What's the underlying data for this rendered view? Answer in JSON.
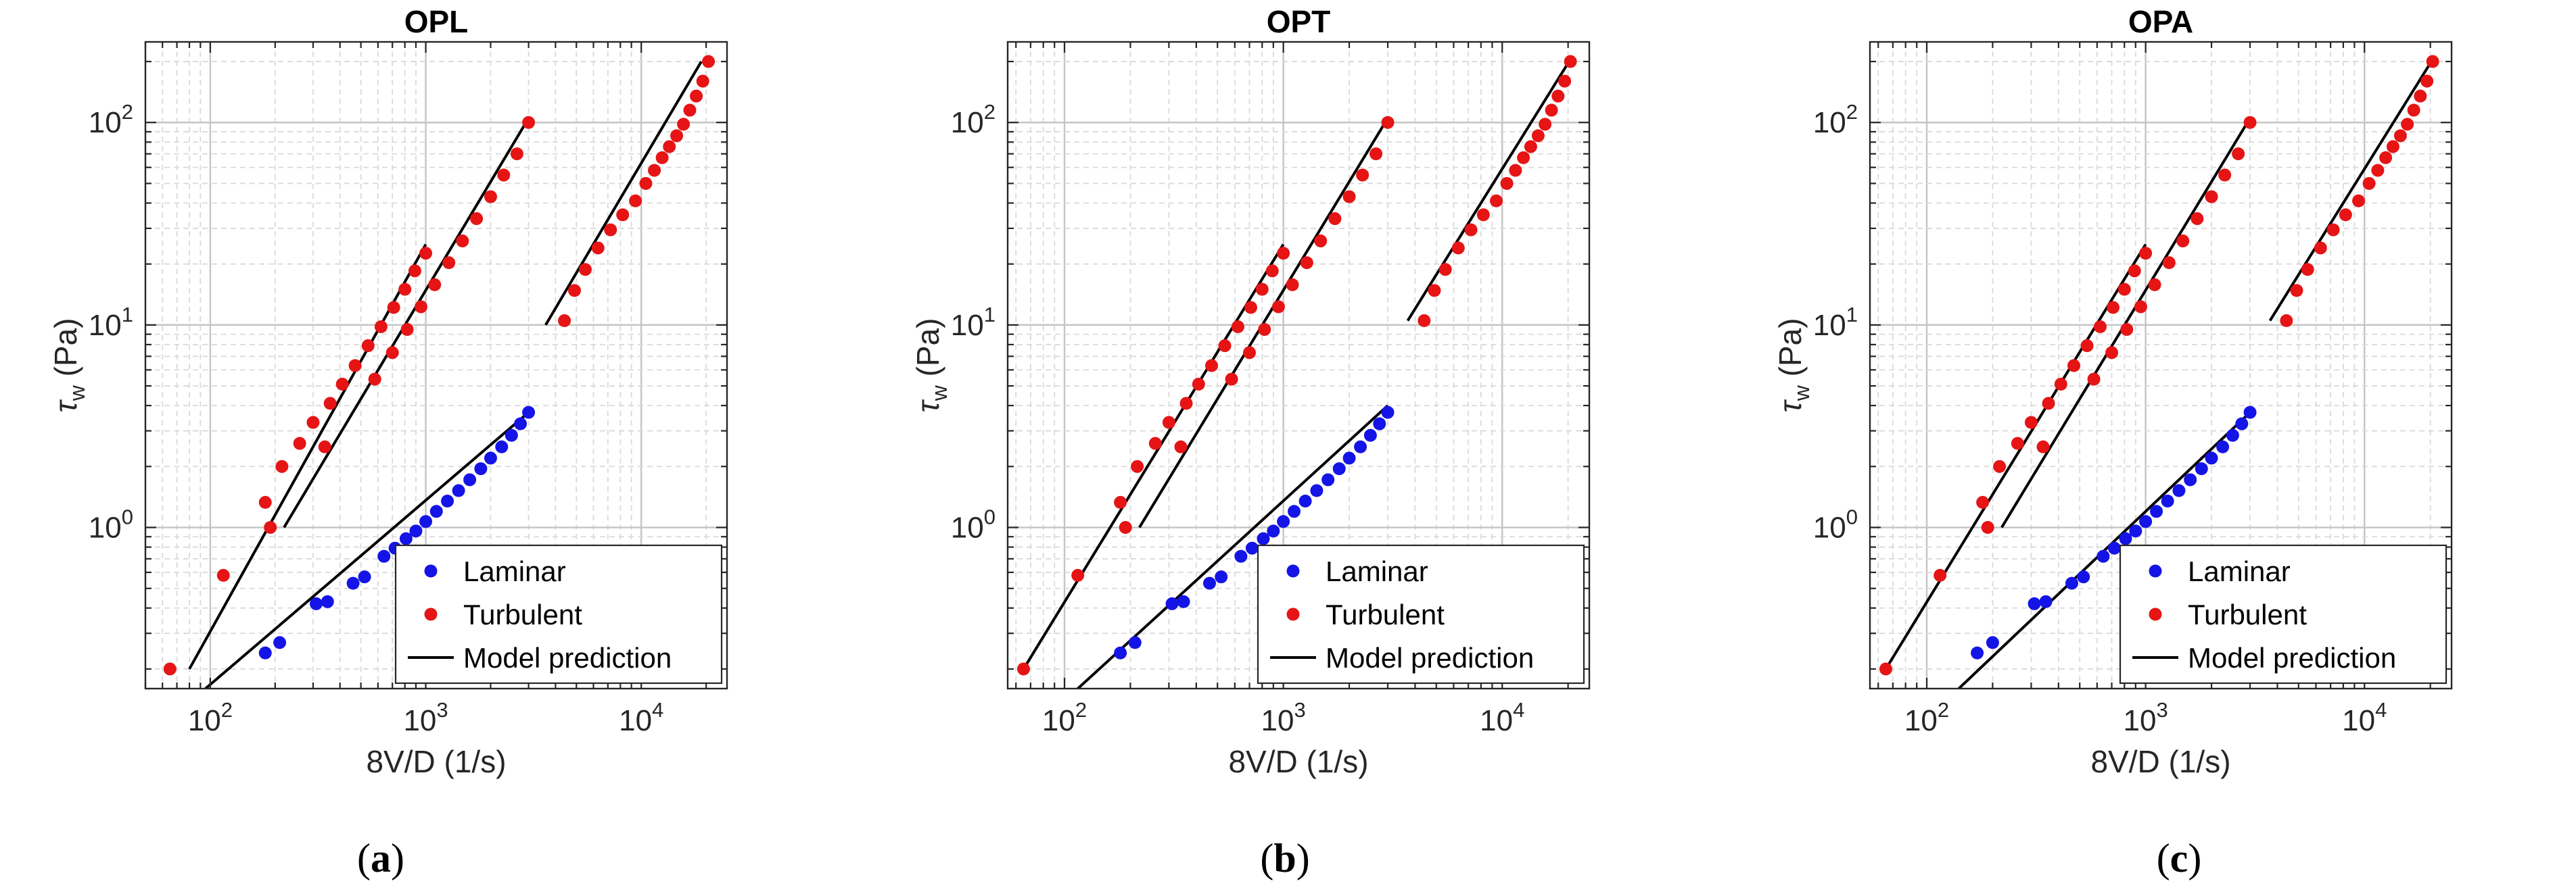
{
  "figure": {
    "panels": [
      {
        "caption_open": "(",
        "caption_letter": "a",
        "caption_close": ")"
      },
      {
        "caption_open": "(",
        "caption_letter": "b",
        "caption_close": ")"
      },
      {
        "caption_open": "(",
        "caption_letter": "c",
        "caption_close": ")"
      }
    ]
  },
  "chart_data": [
    {
      "type": "scatter",
      "title": "OPL",
      "xlabel": "8V/D (1/s)",
      "ylabel_symbol": "τ",
      "ylabel_sub": "w",
      "ylabel_unit": "(Pa)",
      "xscale": "log",
      "yscale": "log",
      "xlim": [
        50,
        25000
      ],
      "ylim": [
        0.16,
        250
      ],
      "xticks": [
        {
          "value": 100,
          "base": "10",
          "exp": "2"
        },
        {
          "value": 1000,
          "base": "10",
          "exp": "3"
        },
        {
          "value": 10000,
          "base": "10",
          "exp": "4"
        }
      ],
      "yticks": [
        {
          "value": 1,
          "base": "10",
          "exp": "0"
        },
        {
          "value": 10,
          "base": "10",
          "exp": "1"
        },
        {
          "value": 100,
          "base": "10",
          "exp": "2"
        }
      ],
      "grid": true,
      "legend": {
        "placement": "bottom-right",
        "entries": [
          "Laminar",
          "Turbulent",
          "Model prediction"
        ]
      },
      "series": [
        {
          "name": "Laminar",
          "color": "#1414e6",
          "x": [
            180,
            210,
            310,
            350,
            460,
            520,
            640,
            720,
            810,
            900,
            1000,
            1120,
            1260,
            1420,
            1600,
            1800,
            2000,
            2250,
            2500,
            2750,
            3000
          ],
          "y": [
            0.24,
            0.27,
            0.42,
            0.43,
            0.53,
            0.57,
            0.72,
            0.79,
            0.88,
            0.96,
            1.07,
            1.2,
            1.35,
            1.52,
            1.72,
            1.95,
            2.2,
            2.5,
            2.85,
            3.25,
            3.7
          ]
        },
        {
          "name": "Turbulent",
          "color": "#e61414",
          "x": [
            65,
            115,
            180,
            215,
            260,
            300,
            360,
            410,
            470,
            540,
            620,
            710,
            800,
            890,
            1000,
            190,
            340,
            580,
            700,
            820,
            950,
            1100,
            1280,
            1480,
            1720,
            2000,
            2300,
            2650,
            3000,
            4400,
            4900,
            5500,
            6300,
            7200,
            8200,
            9400,
            10500,
            11500,
            12500,
            13500,
            14600,
            15700,
            16800,
            18000,
            19300,
            20500
          ],
          "y": [
            0.2,
            0.58,
            1.33,
            2.0,
            2.6,
            3.3,
            4.1,
            5.1,
            6.3,
            7.9,
            9.8,
            12.2,
            15.0,
            18.5,
            22.6,
            1.0,
            2.5,
            5.4,
            7.3,
            9.5,
            12.3,
            15.8,
            20.3,
            26.0,
            33.5,
            43.0,
            55.0,
            70.0,
            100.0,
            10.5,
            14.8,
            18.8,
            24.0,
            29.5,
            35.0,
            41.0,
            50.0,
            58.0,
            67.0,
            76.0,
            86.0,
            98.0,
            115.0,
            135.0,
            160.0,
            200.0
          ]
        },
        {
          "name": "Model prediction",
          "color": "#000000",
          "mode": "lines",
          "segments": [
            {
              "x": [
                80,
                1000
              ],
              "y": [
                0.2,
                25.0
              ]
            },
            {
              "x": [
                220,
                3000
              ],
              "y": [
                1.0,
                105.0
              ]
            },
            {
              "x": [
                3600,
                19000
              ],
              "y": [
                10.0,
                200.0
              ]
            },
            {
              "x": [
                95,
                3000
              ],
              "y": [
                0.16,
                3.7
              ]
            }
          ]
        }
      ]
    },
    {
      "type": "scatter",
      "title": "OPT",
      "xlabel": "8V/D (1/s)",
      "ylabel_symbol": "τ",
      "ylabel_sub": "w",
      "ylabel_unit": "(Pa)",
      "xscale": "log",
      "yscale": "log",
      "xlim": [
        55,
        25000
      ],
      "ylim": [
        0.16,
        250
      ],
      "xticks": [
        {
          "value": 100,
          "base": "10",
          "exp": "2"
        },
        {
          "value": 1000,
          "base": "10",
          "exp": "3"
        },
        {
          "value": 10000,
          "base": "10",
          "exp": "4"
        }
      ],
      "yticks": [
        {
          "value": 1,
          "base": "10",
          "exp": "0"
        },
        {
          "value": 10,
          "base": "10",
          "exp": "1"
        },
        {
          "value": 100,
          "base": "10",
          "exp": "2"
        }
      ],
      "grid": true,
      "legend": {
        "placement": "bottom-right",
        "entries": [
          "Laminar",
          "Turbulent",
          "Model prediction"
        ]
      },
      "series": [
        {
          "name": "Laminar",
          "color": "#1414e6",
          "x": [
            180,
            210,
            310,
            350,
            460,
            520,
            640,
            720,
            810,
            900,
            1000,
            1120,
            1260,
            1420,
            1600,
            1800,
            2000,
            2250,
            2500,
            2750,
            3000
          ],
          "y": [
            0.24,
            0.27,
            0.42,
            0.43,
            0.53,
            0.57,
            0.72,
            0.79,
            0.88,
            0.96,
            1.07,
            1.2,
            1.35,
            1.52,
            1.72,
            1.95,
            2.2,
            2.5,
            2.85,
            3.25,
            3.7
          ]
        },
        {
          "name": "Turbulent",
          "color": "#e61414",
          "x": [
            65,
            115,
            180,
            215,
            260,
            300,
            360,
            410,
            470,
            540,
            620,
            710,
            800,
            890,
            1000,
            190,
            340,
            580,
            700,
            820,
            950,
            1100,
            1280,
            1480,
            1720,
            2000,
            2300,
            2650,
            3000,
            4400,
            4900,
            5500,
            6300,
            7200,
            8200,
            9400,
            10500,
            11500,
            12500,
            13500,
            14600,
            15700,
            16800,
            18000,
            19300,
            20500
          ],
          "y": [
            0.2,
            0.58,
            1.33,
            2.0,
            2.6,
            3.3,
            4.1,
            5.1,
            6.3,
            7.9,
            9.8,
            12.2,
            15.0,
            18.5,
            22.6,
            1.0,
            2.5,
            5.4,
            7.3,
            9.5,
            12.3,
            15.8,
            20.3,
            26.0,
            33.5,
            43.0,
            55.0,
            70.0,
            100.0,
            10.5,
            14.8,
            18.8,
            24.0,
            29.5,
            35.0,
            41.0,
            50.0,
            58.0,
            67.0,
            76.0,
            86.0,
            98.0,
            115.0,
            135.0,
            160.0,
            200.0
          ]
        },
        {
          "name": "Model prediction",
          "color": "#000000",
          "mode": "lines",
          "segments": [
            {
              "x": [
                65,
                1000
              ],
              "y": [
                0.2,
                25.0
              ]
            },
            {
              "x": [
                220,
                3000
              ],
              "y": [
                1.0,
                105.0
              ]
            },
            {
              "x": [
                3700,
                20500
              ],
              "y": [
                10.5,
                205.0
              ]
            },
            {
              "x": [
                115,
                3000
              ],
              "y": [
                0.16,
                4.0
              ]
            }
          ]
        }
      ]
    },
    {
      "type": "scatter",
      "title": "OPA",
      "xlabel": "8V/D (1/s)",
      "ylabel_symbol": "τ",
      "ylabel_sub": "w",
      "ylabel_unit": "(Pa)",
      "xscale": "log",
      "yscale": "log",
      "xlim": [
        55,
        25000
      ],
      "ylim": [
        0.16,
        250
      ],
      "xticks": [
        {
          "value": 100,
          "base": "10",
          "exp": "2"
        },
        {
          "value": 1000,
          "base": "10",
          "exp": "3"
        },
        {
          "value": 10000,
          "base": "10",
          "exp": "4"
        }
      ],
      "yticks": [
        {
          "value": 1,
          "base": "10",
          "exp": "0"
        },
        {
          "value": 10,
          "base": "10",
          "exp": "1"
        },
        {
          "value": 100,
          "base": "10",
          "exp": "2"
        }
      ],
      "grid": true,
      "legend": {
        "placement": "bottom-right",
        "entries": [
          "Laminar",
          "Turbulent",
          "Model prediction"
        ]
      },
      "series": [
        {
          "name": "Laminar",
          "color": "#1414e6",
          "x": [
            170,
            200,
            310,
            350,
            460,
            520,
            640,
            720,
            810,
            900,
            1000,
            1120,
            1260,
            1420,
            1600,
            1800,
            2000,
            2250,
            2500,
            2750,
            3000
          ],
          "y": [
            0.24,
            0.27,
            0.42,
            0.43,
            0.53,
            0.57,
            0.72,
            0.79,
            0.88,
            0.96,
            1.07,
            1.2,
            1.35,
            1.52,
            1.72,
            1.95,
            2.2,
            2.5,
            2.85,
            3.25,
            3.7
          ]
        },
        {
          "name": "Turbulent",
          "color": "#e61414",
          "x": [
            65,
            115,
            180,
            215,
            260,
            300,
            360,
            410,
            470,
            540,
            620,
            710,
            800,
            890,
            1000,
            190,
            340,
            580,
            700,
            820,
            950,
            1100,
            1280,
            1480,
            1720,
            2000,
            2300,
            2650,
            3000,
            4400,
            4900,
            5500,
            6300,
            7200,
            8200,
            9400,
            10500,
            11500,
            12500,
            13500,
            14600,
            15700,
            16800,
            18000,
            19300,
            20500
          ],
          "y": [
            0.2,
            0.58,
            1.33,
            2.0,
            2.6,
            3.3,
            4.1,
            5.1,
            6.3,
            7.9,
            9.8,
            12.2,
            15.0,
            18.5,
            22.6,
            1.0,
            2.5,
            5.4,
            7.3,
            9.5,
            12.3,
            15.8,
            20.3,
            26.0,
            33.5,
            43.0,
            55.0,
            70.0,
            100.0,
            10.5,
            14.8,
            18.8,
            24.0,
            29.5,
            35.0,
            41.0,
            50.0,
            58.0,
            67.0,
            76.0,
            86.0,
            98.0,
            115.0,
            135.0,
            160.0,
            200.0
          ]
        },
        {
          "name": "Model prediction",
          "color": "#000000",
          "mode": "lines",
          "segments": [
            {
              "x": [
                65,
                1000
              ],
              "y": [
                0.2,
                25.0
              ]
            },
            {
              "x": [
                220,
                3000
              ],
              "y": [
                1.0,
                105.0
              ]
            },
            {
              "x": [
                3700,
                20500
              ],
              "y": [
                10.5,
                205.0
              ]
            },
            {
              "x": [
                140,
                3000
              ],
              "y": [
                0.16,
                3.7
              ]
            }
          ]
        }
      ]
    }
  ]
}
